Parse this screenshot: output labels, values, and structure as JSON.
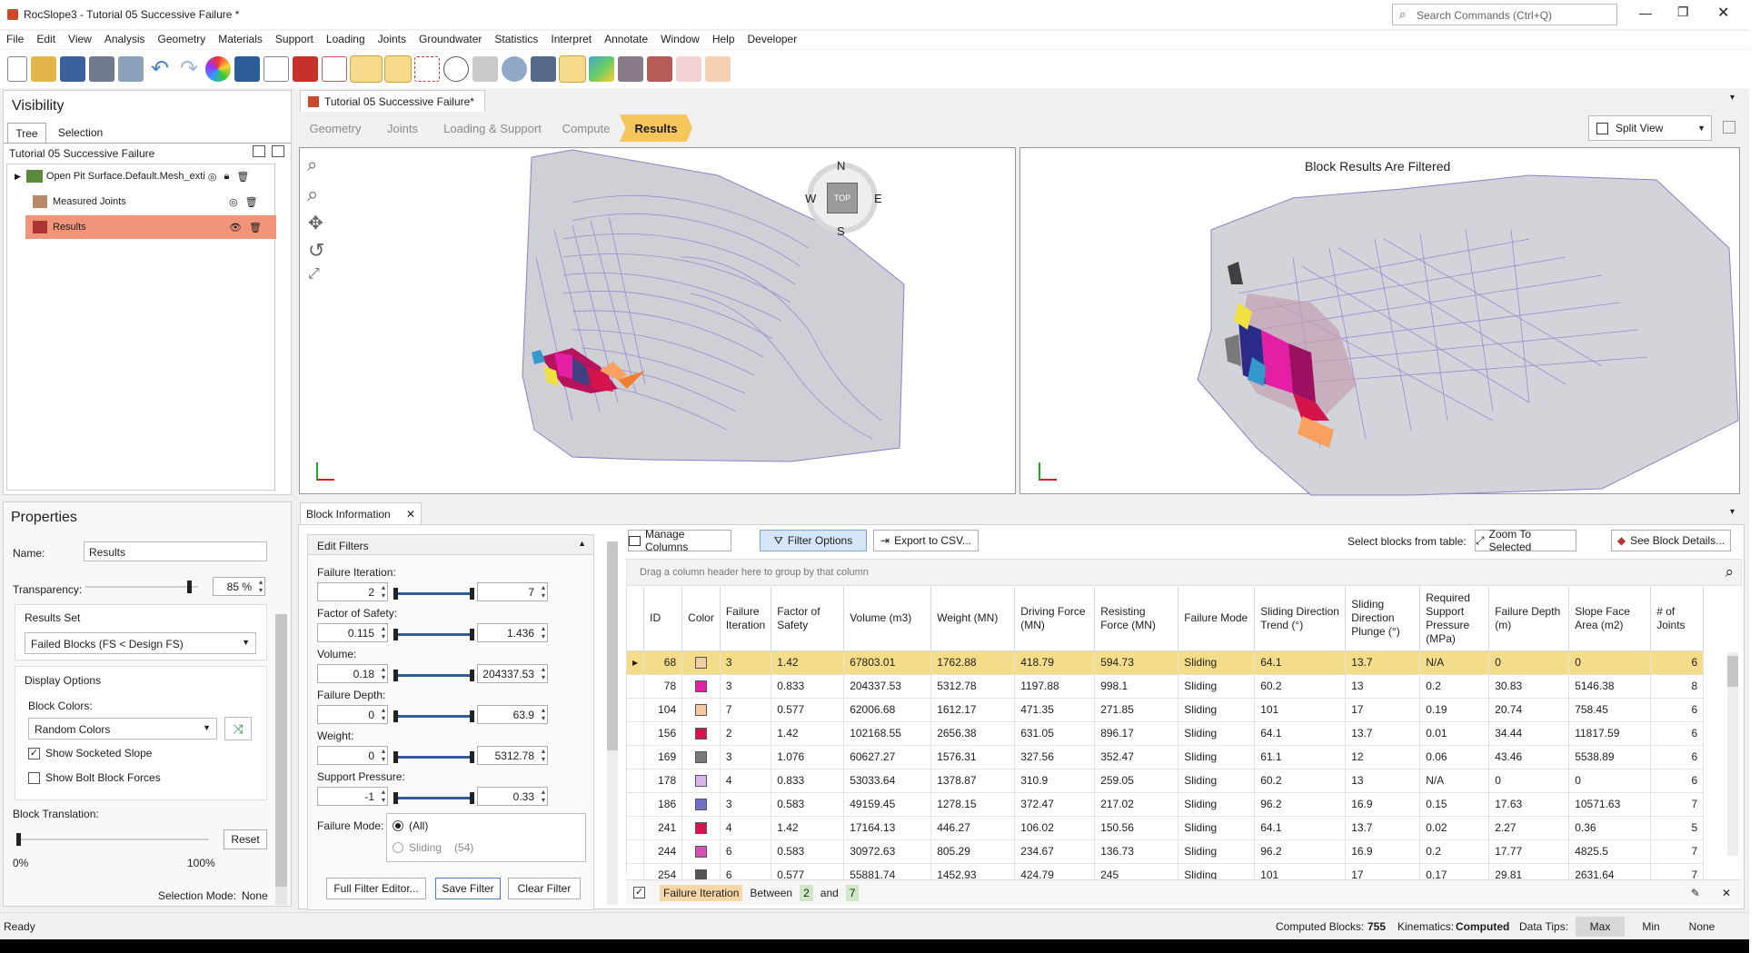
{
  "window": {
    "title": "RocSlope3 - Tutorial 05 Successive Failure *",
    "search_placeholder": "Search Commands (Ctrl+Q)"
  },
  "menu": [
    "File",
    "Edit",
    "View",
    "Analysis",
    "Geometry",
    "Materials",
    "Support",
    "Loading",
    "Joints",
    "Groundwater",
    "Statistics",
    "Interpret",
    "Annotate",
    "Window",
    "Help",
    "Developer"
  ],
  "toolbar_icons": [
    "new-file-icon",
    "open-folder-icon",
    "save-icon",
    "print-icon",
    "report-icon",
    "undo-icon",
    "redo-icon",
    "color-wheel-icon",
    "image-export-icon",
    "pointer-icon",
    "solid-block-icon",
    "wireframe-block-icon",
    "box-select-icon",
    "lock-select-icon",
    "deselect-icon",
    "lasso-icon",
    "plane-icon",
    "view-options-icon",
    "tools-icon",
    "results-view-icon",
    "contour-view-icon",
    "block-view-icon",
    "surface-view-icon",
    "hide-icon",
    "pin-icon"
  ],
  "visibility": {
    "title": "Visibility",
    "tabs": [
      "Tree",
      "Selection"
    ],
    "project": "Tutorial 05 Successive Failure",
    "items": [
      {
        "label": "Open Pit Surface.Default.Mesh_exti"
      },
      {
        "label": "Measured Joints"
      },
      {
        "label": "Results"
      }
    ]
  },
  "document_tab": "Tutorial 05 Successive Failure*",
  "workflow": [
    "Geometry",
    "Joints",
    "Loading & Support",
    "Compute",
    "Results"
  ],
  "view_mode": "Split View",
  "viewport_right_title": "Block Results Are Filtered",
  "compass": {
    "n": "N",
    "s": "S",
    "e": "E",
    "w": "W",
    "top": "TOP"
  },
  "properties": {
    "title": "Properties",
    "name_label": "Name:",
    "name_value": "Results",
    "transparency_label": "Transparency:",
    "transparency_value": "85 %",
    "transparency_percent": 85,
    "results_set_label": "Results Set",
    "results_set_value": "Failed Blocks (FS < Design FS)",
    "display_options_label": "Display Options",
    "block_colors_label": "Block Colors:",
    "block_colors_value": "Random Colors",
    "show_socketed": "Show Socketed Slope",
    "show_socketed_checked": true,
    "show_bolt": "Show Bolt Block Forces",
    "show_bolt_checked": false,
    "translation_label": "Block Translation:",
    "translation_min": "0%",
    "translation_max": "100%",
    "reset": "Reset",
    "selection_mode_label": "Selection Mode:",
    "selection_mode_value": "None"
  },
  "block_info_tab": "Block Information",
  "filters": {
    "title": "Edit Filters",
    "rows": [
      {
        "label": "Failure Iteration:",
        "min": "2",
        "max": "7"
      },
      {
        "label": "Factor of Safety:",
        "min": "0.115",
        "max": "1.436"
      },
      {
        "label": "Volume:",
        "min": "0.18",
        "max": "204337.53"
      },
      {
        "label": "Failure Depth:",
        "min": "0",
        "max": "63.9"
      },
      {
        "label": "Weight:",
        "min": "0",
        "max": "5312.78"
      },
      {
        "label": "Support Pressure:",
        "min": "-1",
        "max": "0.33"
      }
    ],
    "failure_mode_label": "Failure Mode:",
    "failure_mode_all": "(All)",
    "failure_mode_sliding": "Sliding",
    "failure_mode_sliding_count": "(54)",
    "full_filter_editor": "Full Filter Editor...",
    "save_filter": "Save Filter",
    "clear_filter": "Clear Filter"
  },
  "table_toolbar": {
    "manage_columns": "Manage Columns",
    "filter_options": "Filter Options",
    "export_csv": "Export to CSV...",
    "select_label": "Select blocks from table:",
    "zoom_selected": "Zoom To Selected",
    "see_details": "See Block Details...",
    "group_hint": "Drag a column header here to group by that column"
  },
  "table": {
    "columns": [
      "ID",
      "Color",
      "Failure Iteration",
      "Factor of Safety",
      "Volume (m3)",
      "Weight (MN)",
      "Driving Force (MN)",
      "Resisting Force (MN)",
      "Failure Mode",
      "Sliding Direction Trend (°)",
      "Sliding Direction Plunge (°)",
      "Required Support Pressure (MPa)",
      "Failure Depth (m)",
      "Slope Face Area (m2)",
      "# of Joints"
    ],
    "rows": [
      {
        "id": "68",
        "color": "#f1cfa4",
        "iter": "3",
        "fs": "1.42",
        "vol": "67803.01",
        "weight": "1762.88",
        "drive": "418.79",
        "resist": "594.73",
        "mode": "Sliding",
        "trend": "64.1",
        "plunge": "13.7",
        "press": "N/A",
        "depth": "0",
        "area": "0",
        "joints": "6"
      },
      {
        "id": "78",
        "color": "#e51fa5",
        "iter": "3",
        "fs": "0.833",
        "vol": "204337.53",
        "weight": "5312.78",
        "drive": "1197.88",
        "resist": "998.1",
        "mode": "Sliding",
        "trend": "60.2",
        "plunge": "13",
        "press": "0.2",
        "depth": "30.83",
        "area": "5146.38",
        "joints": "8"
      },
      {
        "id": "104",
        "color": "#f7c6a3",
        "iter": "7",
        "fs": "0.577",
        "vol": "62006.68",
        "weight": "1612.17",
        "drive": "471.35",
        "resist": "271.85",
        "mode": "Sliding",
        "trend": "101",
        "plunge": "17",
        "press": "0.19",
        "depth": "20.74",
        "area": "758.45",
        "joints": "6"
      },
      {
        "id": "156",
        "color": "#d4144a",
        "iter": "2",
        "fs": "1.42",
        "vol": "102168.55",
        "weight": "2656.38",
        "drive": "631.05",
        "resist": "896.17",
        "mode": "Sliding",
        "trend": "64.1",
        "plunge": "13.7",
        "press": "0.01",
        "depth": "34.44",
        "area": "11817.59",
        "joints": "6"
      },
      {
        "id": "169",
        "color": "#7a7a7a",
        "iter": "3",
        "fs": "1.076",
        "vol": "60627.27",
        "weight": "1576.31",
        "drive": "327.56",
        "resist": "352.47",
        "mode": "Sliding",
        "trend": "61.1",
        "plunge": "12",
        "press": "0.06",
        "depth": "43.46",
        "area": "5538.89",
        "joints": "6"
      },
      {
        "id": "178",
        "color": "#d9b3f0",
        "iter": "4",
        "fs": "0.833",
        "vol": "53033.64",
        "weight": "1378.87",
        "drive": "310.9",
        "resist": "259.05",
        "mode": "Sliding",
        "trend": "60.2",
        "plunge": "13",
        "press": "N/A",
        "depth": "0",
        "area": "0",
        "joints": "6"
      },
      {
        "id": "186",
        "color": "#7070c8",
        "iter": "3",
        "fs": "0.583",
        "vol": "49159.45",
        "weight": "1278.15",
        "drive": "372.47",
        "resist": "217.02",
        "mode": "Sliding",
        "trend": "96.2",
        "plunge": "16.9",
        "press": "0.15",
        "depth": "17.63",
        "area": "10571.63",
        "joints": "7"
      },
      {
        "id": "241",
        "color": "#d4144a",
        "iter": "4",
        "fs": "1.42",
        "vol": "17164.13",
        "weight": "446.27",
        "drive": "106.02",
        "resist": "150.56",
        "mode": "Sliding",
        "trend": "64.1",
        "plunge": "13.7",
        "press": "0.02",
        "depth": "2.27",
        "area": "0.36",
        "joints": "5"
      },
      {
        "id": "244",
        "color": "#d84fb5",
        "iter": "6",
        "fs": "0.583",
        "vol": "30972.63",
        "weight": "805.29",
        "drive": "234.67",
        "resist": "136.73",
        "mode": "Sliding",
        "trend": "96.2",
        "plunge": "16.9",
        "press": "0.2",
        "depth": "17.77",
        "area": "4825.5",
        "joints": "7"
      },
      {
        "id": "254",
        "color": "#555555",
        "iter": "6",
        "fs": "0.577",
        "vol": "55881.74",
        "weight": "1452.93",
        "drive": "424.79",
        "resist": "245",
        "mode": "Sliding",
        "trend": "101",
        "plunge": "17",
        "press": "0.17",
        "depth": "29.81",
        "area": "2631.64",
        "joints": "7"
      }
    ]
  },
  "filter_bar": {
    "tag": "Failure Iteration",
    "between": "Between",
    "low": "2",
    "and": "and",
    "high": "7"
  },
  "status": {
    "ready": "Ready",
    "computed_label": "Computed Blocks:",
    "computed_value": "755",
    "kinematics_label": "Kinematics:",
    "kinematics_value": "Computed",
    "datatips_label": "Data Tips:",
    "max": "Max",
    "min": "Min",
    "none": "None"
  }
}
